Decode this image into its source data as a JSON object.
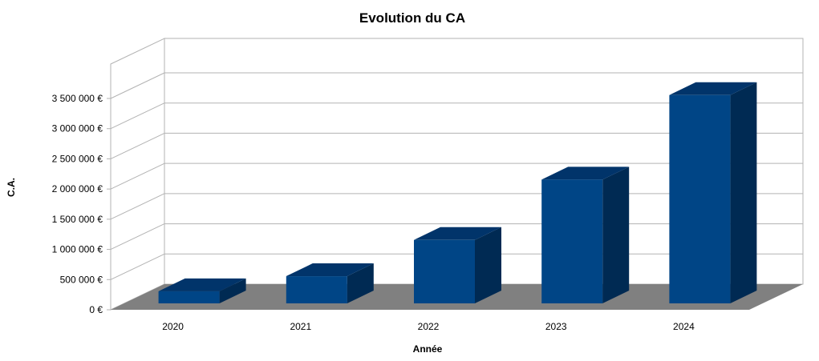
{
  "chart_data": {
    "type": "bar",
    "style": "3d-column",
    "title": "Evolution du CA",
    "xlabel": "Année",
    "ylabel": "C.A.",
    "categories": [
      "2020",
      "2021",
      "2022",
      "2023",
      "2024"
    ],
    "values": [
      200000,
      450000,
      1050000,
      2050000,
      3450000
    ],
    "yticks": [
      "0 €",
      "500 000 €",
      "1 000 000 €",
      "1 500 000 €",
      "2 000 000 €",
      "2 500 000 €",
      "3 000 000 €",
      "3 500 000 €"
    ],
    "ylim": [
      0,
      3500000
    ],
    "grid": true,
    "legend": "none",
    "colors": {
      "bar_front": "#004586",
      "bar_top": "#01346a",
      "bar_side": "#002a53",
      "floor": "#808080",
      "grid": "#b3b3b3"
    }
  }
}
